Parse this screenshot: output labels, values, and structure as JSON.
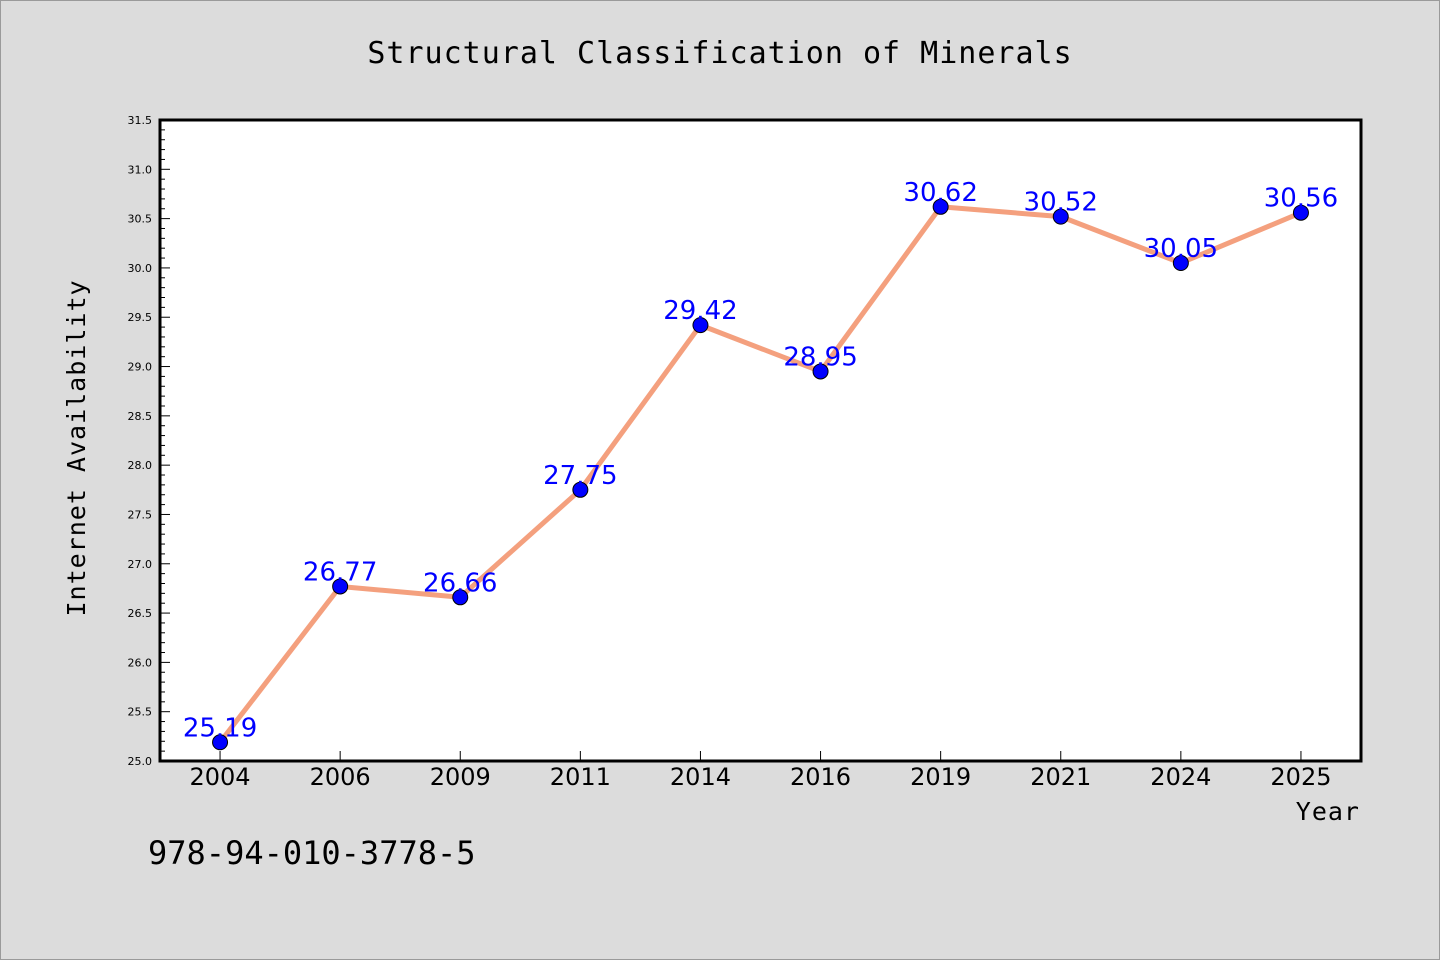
{
  "chart_data": {
    "type": "line",
    "title": "Structural Classification of Minerals",
    "xlabel": "Year",
    "ylabel": "Internet Availability",
    "categories": [
      "2004",
      "2006",
      "2009",
      "2011",
      "2014",
      "2016",
      "2019",
      "2021",
      "2024",
      "2025"
    ],
    "series": [
      {
        "values": [
          25.19,
          26.77,
          26.66,
          27.75,
          29.42,
          28.95,
          30.62,
          30.52,
          30.05,
          30.56
        ],
        "data_labels": [
          "25.19",
          "26.77",
          "26.66",
          "27.75",
          "29.42",
          "28.95",
          "30.62",
          "30.52",
          "30.05",
          "30.56"
        ],
        "line_color": "#f4a07e",
        "marker_color": "#0000ff"
      }
    ],
    "ylim": [
      25.0,
      31.5
    ],
    "yticks": [
      "25.0",
      "25.5",
      "26.0",
      "26.5",
      "27.0",
      "27.5",
      "28.0",
      "28.5",
      "29.0",
      "29.5",
      "30.0",
      "30.5",
      "31.0",
      "31.5"
    ],
    "grid": false,
    "legend": "none"
  },
  "footer": {
    "isbn": "978-94-010-3778-5"
  },
  "colors": {
    "background": "#dcdcdc",
    "plot_background": "#ffffff",
    "line": "#f4a07e",
    "marker": "#0000ff",
    "data_label": "#0000ff"
  }
}
